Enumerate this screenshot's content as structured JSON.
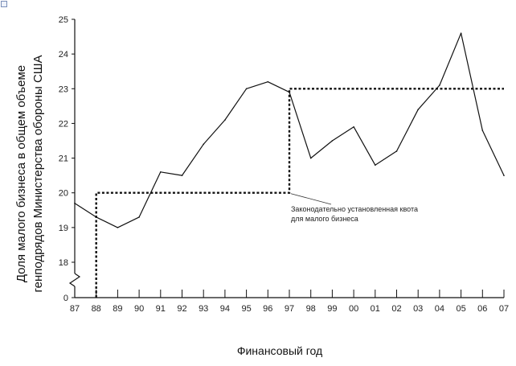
{
  "chart_data": {
    "type": "line",
    "ylabel_line1": "Доля малого бизнеса в общем объеме",
    "ylabel_line2": "генподрядов Министерства обороны США",
    "xlabel": "Финансовый год",
    "categories": [
      "87",
      "88",
      "89",
      "90",
      "91",
      "92",
      "93",
      "94",
      "95",
      "96",
      "97",
      "98",
      "99",
      "00",
      "01",
      "02",
      "03",
      "04",
      "05",
      "06",
      "07"
    ],
    "y_ticks": [
      "0",
      "18",
      "19",
      "20",
      "21",
      "22",
      "23",
      "24",
      "25"
    ],
    "axis_break": true,
    "ylim": [
      17,
      25
    ],
    "series": [
      {
        "style": "solid",
        "values": [
          19.7,
          19.3,
          19.0,
          19.3,
          20.6,
          20.5,
          21.4,
          22.1,
          23.0,
          23.2,
          22.9,
          21.0,
          21.5,
          21.9,
          20.8,
          21.2,
          22.4,
          23.1,
          24.6,
          21.8,
          20.5
        ]
      },
      {
        "style": "dashed-step",
        "steps": [
          {
            "from": "88",
            "to": "97",
            "value": 20.0
          },
          {
            "from": "97",
            "to": "07",
            "value": 23.0
          }
        ],
        "starts_from_axis_at": "88"
      }
    ],
    "annotation": {
      "line1": "Законодательно установленная квота",
      "line2": "для малого бизнеса",
      "points_to": {
        "x": "97",
        "y": 20.0
      }
    },
    "grid": false
  }
}
